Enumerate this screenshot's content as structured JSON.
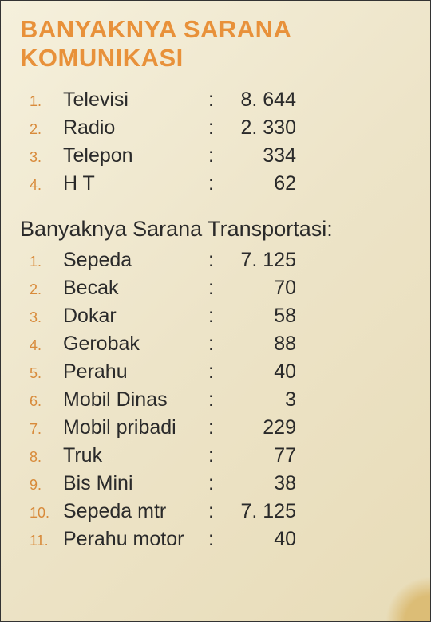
{
  "title_main": "BANYAKNYA SARANA KOMUNIKASI",
  "section_komunikasi": {
    "items": [
      {
        "n": "1.",
        "label": "Televisi",
        "value": "8. 644"
      },
      {
        "n": "2.",
        "label": "Radio",
        "value": "2. 330"
      },
      {
        "n": "3.",
        "label": "Telepon",
        "value": "334"
      },
      {
        "n": "4.",
        "label": "H T",
        "value": "62"
      }
    ]
  },
  "section_transportasi": {
    "title": "Banyaknya Sarana Transportasi:",
    "items": [
      {
        "n": "1.",
        "label": "Sepeda",
        "value": "7. 125"
      },
      {
        "n": "2.",
        "label": "Becak",
        "value": "70"
      },
      {
        "n": "3.",
        "label": "Dokar",
        "value": "58"
      },
      {
        "n": "4.",
        "label": "Gerobak",
        "value": "88"
      },
      {
        "n": "5.",
        "label": "Perahu",
        "value": "40"
      },
      {
        "n": "6.",
        "label": "Mobil Dinas",
        "value": "3"
      },
      {
        "n": "7.",
        "label": "Mobil pribadi",
        "value": "229"
      },
      {
        "n": "8.",
        "label": "Truk",
        "value": "77"
      },
      {
        "n": "9.",
        "label": "Bis Mini",
        "value": "38"
      },
      {
        "n": "10.",
        "label": "Sepeda mtr",
        "value": "7. 125"
      },
      {
        "n": "11.",
        "label": "Perahu motor",
        "value": "40"
      }
    ]
  },
  "style": {
    "bg_gradient_start": "#f5f0dc",
    "bg_gradient_end": "#e8dcb8",
    "title_color": "#e8913a",
    "text_color": "#2a2a2a",
    "number_color": "#d88a3a",
    "title_fontsize": 31,
    "body_fontsize": 25,
    "number_fontsize": 18,
    "accent_corner_color": "#d4a84a"
  }
}
